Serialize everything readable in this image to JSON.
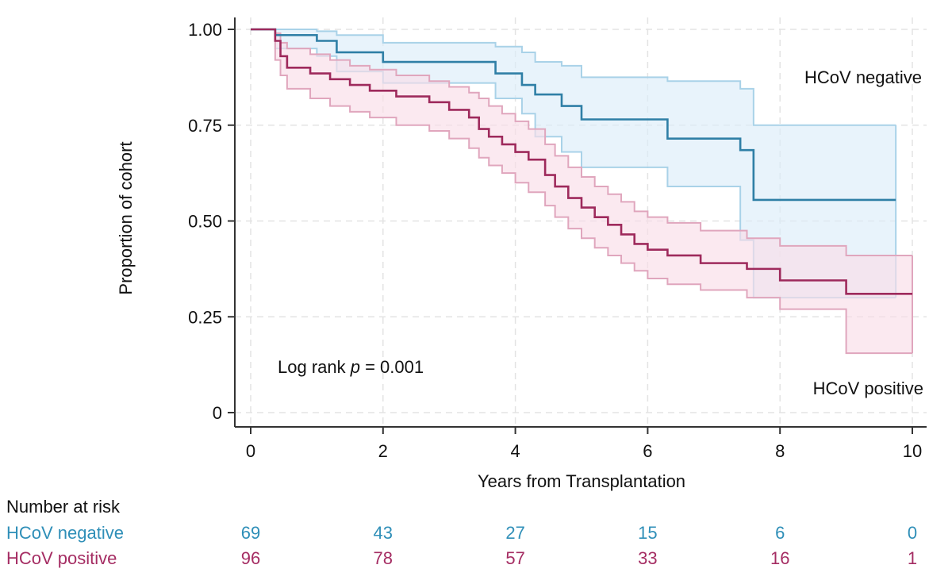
{
  "chart_data": {
    "type": "line",
    "subtype": "kaplan-meier",
    "title": "",
    "xlabel": "Years from Transplantation",
    "ylabel": "Proportion of cohort",
    "xlim": [
      0,
      10
    ],
    "ylim": [
      0,
      1
    ],
    "x_ticks": [
      0,
      2,
      4,
      6,
      8,
      10
    ],
    "x_tick_labels": [
      "0",
      "2",
      "4",
      "6",
      "8",
      "10"
    ],
    "y_ticks": [
      0,
      0.25,
      0.5,
      0.75,
      1.0
    ],
    "y_tick_labels": [
      "0",
      "0.25",
      "0.50",
      "0.75",
      "1.00"
    ],
    "grid": true,
    "annotation": {
      "prefix": "Log rank ",
      "italic": "p",
      "suffix": " = 0.001"
    },
    "series": [
      {
        "name": "HCoV negative",
        "color": "#2f7fa6",
        "ci_line_color": "#a9d2e8",
        "ci_fill_color": "#dcecf9",
        "label_position": "top-right",
        "steps": [
          [
            0,
            1.0
          ],
          [
            0.37,
            0.985
          ],
          [
            1.0,
            0.97
          ],
          [
            1.3,
            0.94
          ],
          [
            2.0,
            0.915
          ],
          [
            3.7,
            0.885
          ],
          [
            4.1,
            0.855
          ],
          [
            4.3,
            0.83
          ],
          [
            4.7,
            0.8
          ],
          [
            5.0,
            0.765
          ],
          [
            6.3,
            0.715
          ],
          [
            7.4,
            0.685
          ],
          [
            7.6,
            0.555
          ],
          [
            9.75,
            0.555
          ]
        ],
        "ci_upper": [
          [
            0,
            1.0
          ],
          [
            0.37,
            1.0
          ],
          [
            1.0,
            0.995
          ],
          [
            1.3,
            0.985
          ],
          [
            2.0,
            0.965
          ],
          [
            3.7,
            0.955
          ],
          [
            4.1,
            0.94
          ],
          [
            4.3,
            0.915
          ],
          [
            4.7,
            0.905
          ],
          [
            5.0,
            0.875
          ],
          [
            6.3,
            0.865
          ],
          [
            7.4,
            0.845
          ],
          [
            7.6,
            0.75
          ],
          [
            9.75,
            0.75
          ]
        ],
        "ci_lower": [
          [
            0,
            1.0
          ],
          [
            0.37,
            0.95
          ],
          [
            1.0,
            0.93
          ],
          [
            1.3,
            0.89
          ],
          [
            2.0,
            0.86
          ],
          [
            3.7,
            0.82
          ],
          [
            4.1,
            0.78
          ],
          [
            4.3,
            0.72
          ],
          [
            4.7,
            0.68
          ],
          [
            5.0,
            0.64
          ],
          [
            6.3,
            0.59
          ],
          [
            7.4,
            0.45
          ],
          [
            7.6,
            0.3
          ],
          [
            9.75,
            0.3
          ]
        ]
      },
      {
        "name": "HCoV positive",
        "color": "#9e2a5c",
        "ci_line_color": "#e0a6bd",
        "ci_fill_color": "#f9dde8",
        "label_position": "bottom-right",
        "steps": [
          [
            0,
            1.0
          ],
          [
            0.37,
            0.97
          ],
          [
            0.45,
            0.93
          ],
          [
            0.55,
            0.9
          ],
          [
            0.9,
            0.885
          ],
          [
            1.2,
            0.87
          ],
          [
            1.5,
            0.855
          ],
          [
            1.8,
            0.84
          ],
          [
            2.2,
            0.825
          ],
          [
            2.7,
            0.81
          ],
          [
            3.0,
            0.79
          ],
          [
            3.3,
            0.77
          ],
          [
            3.45,
            0.74
          ],
          [
            3.6,
            0.72
          ],
          [
            3.8,
            0.7
          ],
          [
            4.0,
            0.68
          ],
          [
            4.2,
            0.66
          ],
          [
            4.45,
            0.62
          ],
          [
            4.6,
            0.59
          ],
          [
            4.8,
            0.56
          ],
          [
            5.0,
            0.535
          ],
          [
            5.2,
            0.51
          ],
          [
            5.4,
            0.49
          ],
          [
            5.6,
            0.465
          ],
          [
            5.8,
            0.44
          ],
          [
            6.0,
            0.425
          ],
          [
            6.3,
            0.41
          ],
          [
            6.8,
            0.39
          ],
          [
            7.5,
            0.375
          ],
          [
            8.0,
            0.345
          ],
          [
            9.0,
            0.31
          ],
          [
            10.0,
            0.31
          ]
        ],
        "ci_upper": [
          [
            0,
            1.0
          ],
          [
            0.37,
            0.99
          ],
          [
            0.45,
            0.965
          ],
          [
            0.55,
            0.95
          ],
          [
            0.9,
            0.935
          ],
          [
            1.2,
            0.92
          ],
          [
            1.5,
            0.905
          ],
          [
            1.8,
            0.895
          ],
          [
            2.2,
            0.88
          ],
          [
            2.7,
            0.865
          ],
          [
            3.0,
            0.85
          ],
          [
            3.3,
            0.835
          ],
          [
            3.45,
            0.82
          ],
          [
            3.6,
            0.8
          ],
          [
            3.8,
            0.78
          ],
          [
            4.0,
            0.76
          ],
          [
            4.2,
            0.74
          ],
          [
            4.45,
            0.7
          ],
          [
            4.6,
            0.67
          ],
          [
            4.8,
            0.64
          ],
          [
            5.0,
            0.615
          ],
          [
            5.2,
            0.59
          ],
          [
            5.4,
            0.57
          ],
          [
            5.6,
            0.55
          ],
          [
            5.8,
            0.525
          ],
          [
            6.0,
            0.51
          ],
          [
            6.3,
            0.495
          ],
          [
            6.8,
            0.475
          ],
          [
            7.5,
            0.455
          ],
          [
            8.0,
            0.435
          ],
          [
            9.0,
            0.41
          ],
          [
            10.0,
            0.41
          ]
        ],
        "ci_lower": [
          [
            0,
            1.0
          ],
          [
            0.37,
            0.92
          ],
          [
            0.45,
            0.88
          ],
          [
            0.55,
            0.845
          ],
          [
            0.9,
            0.82
          ],
          [
            1.2,
            0.8
          ],
          [
            1.5,
            0.785
          ],
          [
            1.8,
            0.77
          ],
          [
            2.2,
            0.75
          ],
          [
            2.7,
            0.735
          ],
          [
            3.0,
            0.715
          ],
          [
            3.3,
            0.69
          ],
          [
            3.45,
            0.665
          ],
          [
            3.6,
            0.645
          ],
          [
            3.8,
            0.625
          ],
          [
            4.0,
            0.6
          ],
          [
            4.2,
            0.575
          ],
          [
            4.45,
            0.54
          ],
          [
            4.6,
            0.51
          ],
          [
            4.8,
            0.48
          ],
          [
            5.0,
            0.455
          ],
          [
            5.2,
            0.43
          ],
          [
            5.4,
            0.41
          ],
          [
            5.6,
            0.39
          ],
          [
            5.8,
            0.37
          ],
          [
            6.0,
            0.35
          ],
          [
            6.3,
            0.335
          ],
          [
            6.8,
            0.32
          ],
          [
            7.5,
            0.3
          ],
          [
            8.0,
            0.27
          ],
          [
            9.0,
            0.155
          ],
          [
            10.0,
            0.155
          ]
        ]
      }
    ],
    "risk_table": {
      "title": "Number at risk",
      "times": [
        0,
        2,
        4,
        6,
        8,
        10
      ],
      "rows": [
        {
          "name": "HCoV negative",
          "color": "#2f8fb8",
          "values": [
            "69",
            "43",
            "27",
            "15",
            "6",
            "0"
          ]
        },
        {
          "name": "HCoV positive",
          "color": "#a52d63",
          "values": [
            "96",
            "78",
            "57",
            "33",
            "16",
            "1"
          ]
        }
      ]
    }
  }
}
